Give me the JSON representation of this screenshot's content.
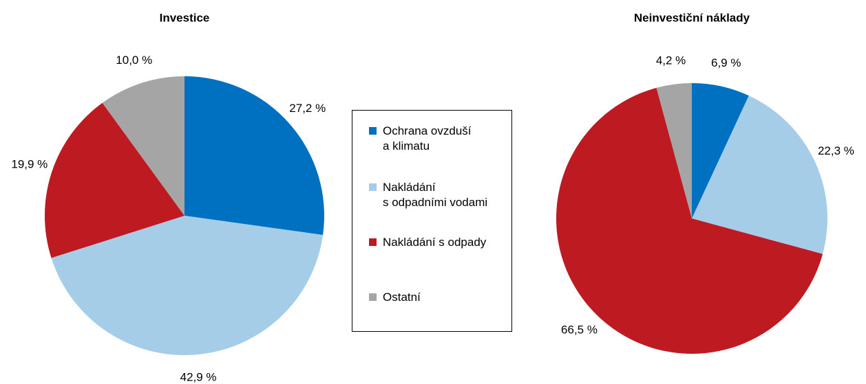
{
  "chart_data": [
    {
      "type": "pie",
      "title": "Investice",
      "categories": [
        "Ochrana ovzduší\na klimatu",
        "Nakládání\ns odpadními vodami",
        "Nakládání s odpady",
        "Ostatní"
      ],
      "values": [
        27.2,
        42.9,
        19.9,
        10.0
      ],
      "value_labels": [
        "27,2 %",
        "42,9 %",
        "19,9 %",
        "10,0 %"
      ],
      "colors": [
        "#0070c0",
        "#a6cde8",
        "#be1a22",
        "#a5a5a5"
      ]
    },
    {
      "type": "pie",
      "title": "Neinvestiční náklady",
      "categories": [
        "Ochrana ovzduší\na klimatu",
        "Nakládání\ns odpadními vodami",
        "Nakládání s odpady",
        "Ostatní"
      ],
      "values": [
        6.9,
        22.3,
        66.5,
        4.2
      ],
      "value_labels": [
        "6,9 %",
        "22,3 %",
        "66,5 %",
        "4,2 %"
      ],
      "colors": [
        "#0070c0",
        "#a6cde8",
        "#be1a22",
        "#a5a5a5"
      ]
    }
  ]
}
